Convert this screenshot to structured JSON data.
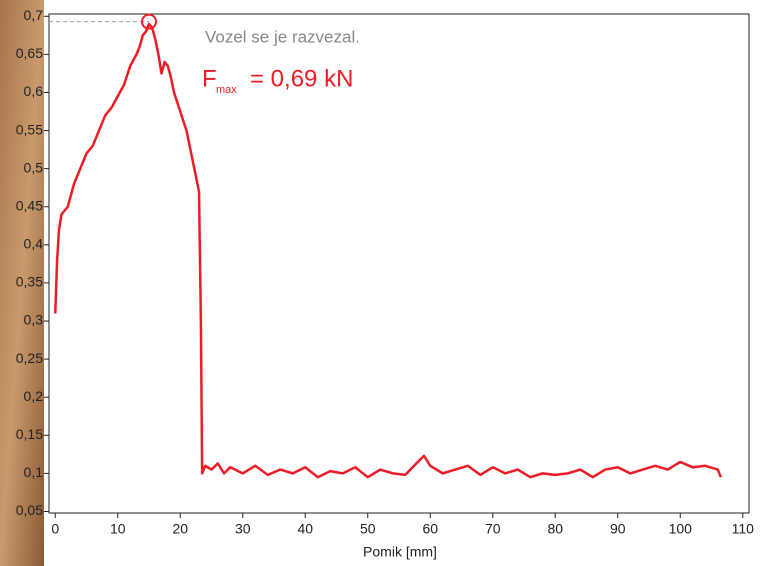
{
  "chart_data": {
    "type": "line",
    "x_label": "Pomik [mm]",
    "annotations": {
      "note": "Vozel se je razvezal.",
      "fmax_symbol": "F",
      "fmax_subscript": "max",
      "fmax_value": "= 0,69 kN"
    },
    "peak": {
      "x": 15,
      "y": 0.693
    },
    "xlim": [
      -1,
      111
    ],
    "ylim": [
      0.048,
      0.703
    ],
    "xticks": [
      0,
      10,
      20,
      30,
      40,
      50,
      60,
      70,
      80,
      90,
      100,
      110
    ],
    "yticks": [
      {
        "value": 0.05,
        "label": "0,05"
      },
      {
        "value": 0.1,
        "label": "0,1"
      },
      {
        "value": 0.15,
        "label": "0,15"
      },
      {
        "value": 0.2,
        "label": "0,2"
      },
      {
        "value": 0.25,
        "label": "0,25"
      },
      {
        "value": 0.3,
        "label": "0,3"
      },
      {
        "value": 0.35,
        "label": "0,35"
      },
      {
        "value": 0.4,
        "label": "0,4"
      },
      {
        "value": 0.45,
        "label": "0,45"
      },
      {
        "value": 0.5,
        "label": "0,5"
      },
      {
        "value": 0.55,
        "label": "0,55"
      },
      {
        "value": 0.6,
        "label": "0,6"
      },
      {
        "value": 0.65,
        "label": "0,65"
      },
      {
        "value": 0.7,
        "label": "0,7"
      }
    ],
    "color": "#ee1c25",
    "x": [
      0,
      0.3,
      0.6,
      1,
      2,
      3,
      4,
      5,
      6,
      7,
      8,
      9,
      10,
      11,
      12,
      13,
      13.5,
      14,
      14.5,
      15,
      15.5,
      16,
      16.5,
      17,
      17.5,
      18,
      18.5,
      19,
      20,
      21,
      22,
      23,
      23.3,
      23.5,
      24,
      25,
      26,
      27,
      28,
      30,
      32,
      34,
      36,
      38,
      40,
      42,
      44,
      46,
      48,
      50,
      52,
      54,
      56,
      58,
      59,
      60,
      62,
      64,
      66,
      68,
      70,
      72,
      74,
      76,
      78,
      80,
      82,
      84,
      86,
      88,
      90,
      92,
      94,
      96,
      98,
      100,
      102,
      104,
      106,
      106.5
    ],
    "values": [
      0.31,
      0.38,
      0.42,
      0.44,
      0.45,
      0.48,
      0.5,
      0.52,
      0.53,
      0.55,
      0.57,
      0.58,
      0.595,
      0.61,
      0.635,
      0.65,
      0.66,
      0.675,
      0.68,
      0.69,
      0.685,
      0.67,
      0.65,
      0.625,
      0.64,
      0.635,
      0.62,
      0.6,
      0.575,
      0.55,
      0.51,
      0.47,
      0.3,
      0.1,
      0.11,
      0.105,
      0.113,
      0.1,
      0.108,
      0.1,
      0.11,
      0.098,
      0.105,
      0.1,
      0.108,
      0.095,
      0.103,
      0.1,
      0.108,
      0.095,
      0.105,
      0.1,
      0.098,
      0.115,
      0.123,
      0.11,
      0.1,
      0.105,
      0.11,
      0.098,
      0.108,
      0.1,
      0.105,
      0.095,
      0.1,
      0.098,
      0.1,
      0.105,
      0.095,
      0.105,
      0.108,
      0.1,
      0.105,
      0.11,
      0.105,
      0.115,
      0.108,
      0.11,
      0.105,
      0.095
    ]
  }
}
